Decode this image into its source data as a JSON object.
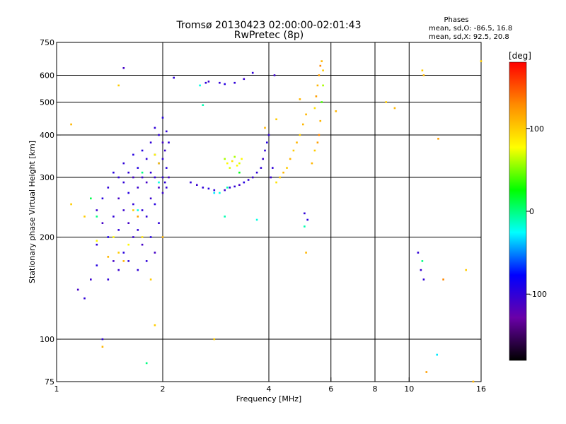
{
  "chart_data": {
    "type": "scatter",
    "title": "Tromsø 20130423 02:00:00-02:01:43",
    "subtitle": "RwPretec (8p)",
    "stats": {
      "heading": "Phases",
      "line_o": "mean, sd,O: -86.5, 16.8",
      "line_x": "mean, sd,X:  92.5, 20.8"
    },
    "xlabel": "Frequency [MHz]",
    "ylabel": "Stationary phase Virtual Height [km]",
    "x_scale": "log",
    "y_scale": "log",
    "xlim": [
      1,
      16
    ],
    "ylim": [
      75,
      750
    ],
    "x_ticks": [
      1,
      2,
      4,
      6,
      8,
      10,
      16
    ],
    "x_tick_labels": [
      "1",
      "2",
      "4",
      "6",
      "8",
      "10",
      "16"
    ],
    "x_gridlines": [
      2,
      4,
      6,
      8,
      10
    ],
    "y_ticks": [
      75,
      100,
      200,
      300,
      400,
      500,
      600,
      750
    ],
    "y_tick_labels": [
      "75",
      "100",
      "200",
      "300",
      "400",
      "500",
      "600",
      "750"
    ],
    "y_gridlines": [
      100,
      200,
      300,
      400,
      500,
      600
    ],
    "grid": true,
    "colorbar": {
      "label": "[deg]",
      "range": [
        -180,
        180
      ],
      "ticks": [
        100,
        0,
        -100
      ],
      "tick_labels": [
        "100",
        "0",
        "-100"
      ],
      "colors": [
        "#ff0000",
        "#ff8c00",
        "#ffff00",
        "#00ff00",
        "#00ffff",
        "#0000ff",
        "#6a00a8",
        "#000000"
      ]
    },
    "series": [
      {
        "points": [
          [
            1.15,
            140,
            -110
          ],
          [
            1.2,
            132,
            -100
          ],
          [
            1.25,
            150,
            -105
          ],
          [
            1.3,
            165,
            -95
          ],
          [
            1.3,
            190,
            -100
          ],
          [
            1.3,
            240,
            -105
          ],
          [
            1.35,
            260,
            -95
          ],
          [
            1.35,
            220,
            -110
          ],
          [
            1.4,
            150,
            -100
          ],
          [
            1.4,
            200,
            -90
          ],
          [
            1.4,
            280,
            -100
          ],
          [
            1.45,
            170,
            -110
          ],
          [
            1.45,
            230,
            -100
          ],
          [
            1.45,
            310,
            -95
          ],
          [
            1.5,
            160,
            -105
          ],
          [
            1.5,
            210,
            -100
          ],
          [
            1.5,
            260,
            -110
          ],
          [
            1.5,
            300,
            -100
          ],
          [
            1.55,
            180,
            -95
          ],
          [
            1.55,
            240,
            -105
          ],
          [
            1.55,
            290,
            -100
          ],
          [
            1.55,
            330,
            -100
          ],
          [
            1.6,
            170,
            -100
          ],
          [
            1.6,
            220,
            -110
          ],
          [
            1.6,
            270,
            -95
          ],
          [
            1.6,
            310,
            -100
          ],
          [
            1.65,
            200,
            -105
          ],
          [
            1.65,
            250,
            -100
          ],
          [
            1.65,
            300,
            -110
          ],
          [
            1.65,
            350,
            -95
          ],
          [
            1.7,
            160,
            -100
          ],
          [
            1.7,
            210,
            -100
          ],
          [
            1.7,
            280,
            -105
          ],
          [
            1.7,
            320,
            -95
          ],
          [
            1.75,
            190,
            -110
          ],
          [
            1.75,
            240,
            -100
          ],
          [
            1.75,
            300,
            -105
          ],
          [
            1.75,
            360,
            -95
          ],
          [
            1.8,
            170,
            -100
          ],
          [
            1.8,
            230,
            -100
          ],
          [
            1.8,
            290,
            -110
          ],
          [
            1.8,
            340,
            -100
          ],
          [
            1.85,
            200,
            -95
          ],
          [
            1.85,
            260,
            -105
          ],
          [
            1.85,
            310,
            -100
          ],
          [
            1.85,
            380,
            -100
          ],
          [
            1.9,
            180,
            -110
          ],
          [
            1.9,
            250,
            -95
          ],
          [
            1.9,
            300,
            -100
          ],
          [
            1.9,
            350,
            -105
          ],
          [
            1.9,
            420,
            -100
          ],
          [
            1.95,
            220,
            -100
          ],
          [
            1.95,
            280,
            -110
          ],
          [
            1.95,
            330,
            -95
          ],
          [
            1.95,
            400,
            -100
          ],
          [
            2.0,
            270,
            -105
          ],
          [
            2.0,
            300,
            -100
          ],
          [
            2.0,
            340,
            -100
          ],
          [
            2.0,
            380,
            -110
          ],
          [
            2.0,
            450,
            -95
          ],
          [
            2.03,
            290,
            -100
          ],
          [
            2.03,
            360,
            -105
          ],
          [
            2.05,
            280,
            -100
          ],
          [
            2.05,
            320,
            -95
          ],
          [
            2.05,
            410,
            -100
          ],
          [
            2.08,
            300,
            -110
          ],
          [
            2.08,
            380,
            -100
          ],
          [
            2.4,
            290,
            -100
          ],
          [
            2.5,
            285,
            -105
          ],
          [
            2.6,
            280,
            -100
          ],
          [
            2.7,
            278,
            -95
          ],
          [
            2.8,
            275,
            -100
          ],
          [
            3.0,
            275,
            -105
          ],
          [
            3.1,
            280,
            -100
          ],
          [
            3.2,
            282,
            -100
          ],
          [
            3.3,
            285,
            -110
          ],
          [
            3.4,
            290,
            -95
          ],
          [
            3.5,
            295,
            -100
          ],
          [
            3.6,
            300,
            -105
          ],
          [
            3.7,
            310,
            -100
          ],
          [
            2.65,
            570,
            -100
          ],
          [
            2.7,
            575,
            -105
          ],
          [
            2.9,
            570,
            -100
          ],
          [
            3.0,
            565,
            -95
          ],
          [
            3.2,
            570,
            -100
          ],
          [
            3.4,
            585,
            -105
          ],
          [
            3.6,
            610,
            -100
          ],
          [
            3.8,
            320,
            -100
          ],
          [
            3.85,
            340,
            -105
          ],
          [
            3.9,
            360,
            -100
          ],
          [
            3.95,
            380,
            -95
          ],
          [
            4.0,
            400,
            -100
          ],
          [
            4.05,
            300,
            -105
          ],
          [
            4.1,
            320,
            -100
          ],
          [
            1.35,
            100,
            -100
          ],
          [
            1.55,
            630,
            -110
          ],
          [
            2.15,
            590,
            -100
          ],
          [
            4.15,
            600,
            -105
          ],
          [
            5.05,
            235,
            -100
          ],
          [
            5.15,
            225,
            -95
          ],
          [
            10.6,
            180,
            -100
          ],
          [
            10.8,
            160,
            -105
          ],
          [
            11.0,
            150,
            -100
          ]
        ]
      },
      {
        "points": [
          [
            2.55,
            560,
            -20
          ],
          [
            2.6,
            490,
            -10
          ],
          [
            2.8,
            270,
            -30
          ],
          [
            2.9,
            270,
            -20
          ],
          [
            3.05,
            280,
            -10
          ],
          [
            1.7,
            240,
            -20
          ],
          [
            1.75,
            310,
            0
          ],
          [
            1.95,
            290,
            -20
          ],
          [
            1.3,
            230,
            0
          ],
          [
            1.25,
            260,
            10
          ],
          [
            5.05,
            215,
            -10
          ],
          [
            3.7,
            225,
            -20
          ],
          [
            12.0,
            90,
            -30
          ],
          [
            10.9,
            170,
            0
          ],
          [
            1.8,
            85,
            0
          ],
          [
            3.0,
            230,
            -10
          ]
        ]
      },
      {
        "points": [
          [
            3.0,
            340,
            60
          ],
          [
            3.05,
            330,
            80
          ],
          [
            3.1,
            320,
            70
          ],
          [
            3.15,
            335,
            90
          ],
          [
            3.2,
            345,
            60
          ],
          [
            3.25,
            325,
            80
          ],
          [
            3.3,
            330,
            70
          ],
          [
            3.35,
            340,
            80
          ],
          [
            3.3,
            310,
            20
          ],
          [
            4.2,
            290,
            90
          ],
          [
            4.3,
            300,
            100
          ],
          [
            4.4,
            310,
            110
          ],
          [
            4.5,
            320,
            100
          ],
          [
            4.6,
            340,
            110
          ],
          [
            4.7,
            360,
            100
          ],
          [
            4.8,
            380,
            110
          ],
          [
            4.9,
            400,
            100
          ],
          [
            5.0,
            430,
            110
          ],
          [
            5.1,
            460,
            110
          ],
          [
            5.4,
            480,
            90
          ],
          [
            5.45,
            520,
            120
          ],
          [
            5.5,
            560,
            110
          ],
          [
            5.55,
            600,
            120
          ],
          [
            5.6,
            640,
            130
          ],
          [
            5.65,
            660,
            110
          ],
          [
            5.7,
            620,
            100
          ],
          [
            5.7,
            560,
            60
          ],
          [
            5.65,
            500,
            40
          ],
          [
            5.6,
            440,
            110
          ],
          [
            5.55,
            400,
            130
          ],
          [
            5.5,
            380,
            120
          ],
          [
            5.4,
            360,
            100
          ],
          [
            5.3,
            330,
            110
          ],
          [
            1.45,
            200,
            80
          ],
          [
            1.5,
            180,
            100
          ],
          [
            1.55,
            170,
            110
          ],
          [
            1.6,
            190,
            80
          ],
          [
            1.65,
            240,
            100
          ],
          [
            1.7,
            230,
            120
          ],
          [
            1.75,
            200,
            90
          ],
          [
            1.85,
            150,
            100
          ],
          [
            1.4,
            175,
            110
          ],
          [
            1.3,
            195,
            80
          ],
          [
            1.2,
            230,
            100
          ],
          [
            1.1,
            430,
            110
          ],
          [
            1.1,
            250,
            100
          ],
          [
            1.5,
            560,
            100
          ],
          [
            1.9,
            350,
            80
          ],
          [
            1.95,
            330,
            100
          ],
          [
            6.2,
            470,
            110
          ],
          [
            8.6,
            500,
            100
          ],
          [
            9.1,
            480,
            110
          ],
          [
            10.9,
            620,
            100
          ],
          [
            11.0,
            600,
            110
          ],
          [
            12.1,
            390,
            120
          ],
          [
            16.0,
            660,
            100
          ],
          [
            15.2,
            75,
            110
          ],
          [
            14.5,
            160,
            100
          ],
          [
            11.2,
            80,
            120
          ],
          [
            1.35,
            95,
            110
          ],
          [
            1.9,
            110,
            100
          ],
          [
            2.0,
            200,
            110
          ],
          [
            2.8,
            100,
            100
          ],
          [
            4.9,
            510,
            110
          ],
          [
            3.9,
            420,
            110
          ],
          [
            4.2,
            445,
            100
          ],
          [
            5.1,
            180,
            110
          ],
          [
            12.5,
            150,
            130
          ]
        ]
      }
    ]
  }
}
